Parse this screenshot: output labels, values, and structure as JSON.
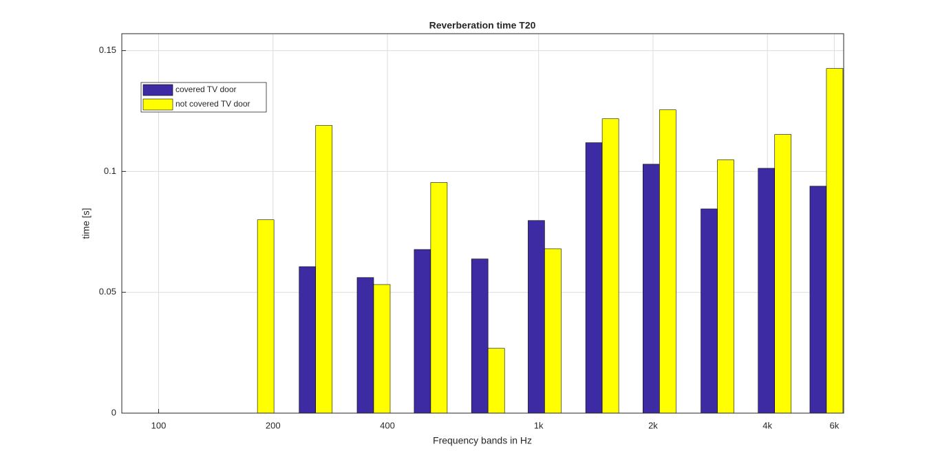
{
  "chart_data": {
    "type": "bar",
    "title": "Reverberation time T20",
    "x_label": "Frequency bands in Hz",
    "y_label": "time [s]",
    "x": [
      91,
      129,
      182,
      259,
      368,
      520,
      736,
      1037,
      1470,
      2080,
      2955,
      4180,
      5720
    ],
    "series": [
      {
        "name": "covered TV door",
        "color": "#3c2ba3",
        "values": [
          0,
          0,
          0,
          0.0606,
          0.0561,
          0.0677,
          0.0638,
          0.0797,
          0.1119,
          0.103,
          0.0845,
          0.1013,
          0.0939
        ]
      },
      {
        "name": "not covered TV door",
        "color": "#ffff00",
        "values": [
          0,
          0,
          0.08,
          0.119,
          0.0532,
          0.0954,
          0.0268,
          0.068,
          0.1218,
          0.1255,
          0.1048,
          0.1153,
          0.1426
        ]
      }
    ],
    "x_log": true,
    "xlim": [
      80,
      6350
    ],
    "xticks": [
      100,
      200,
      400,
      {
        "value": 1000,
        "label": "1k"
      },
      {
        "value": 2000,
        "label": "2k"
      },
      {
        "value": 4000,
        "label": "4k"
      },
      {
        "value": 6000,
        "label": "6k"
      }
    ],
    "ylim": [
      0,
      0.157
    ],
    "yticks": [
      0,
      0.05,
      0.1,
      0.15
    ],
    "grid": true,
    "legend": "northwest"
  }
}
